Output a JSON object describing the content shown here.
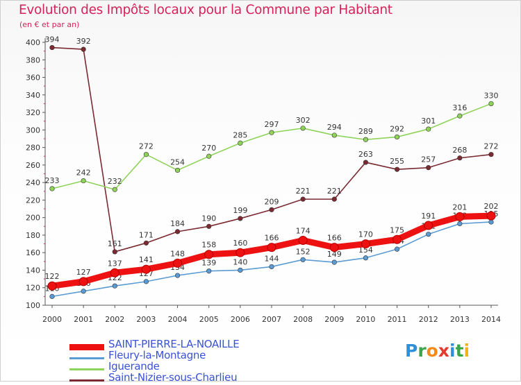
{
  "header": {
    "title": "Evolution des Impôts locaux pour la Commune par Habitant",
    "subtitle": "(en € et par an)"
  },
  "logo": {
    "letters": [
      "P",
      "r",
      "o",
      "x",
      "i",
      "t",
      "i"
    ],
    "colors": [
      "#2f8fd8",
      "#3aa64a",
      "#f28a1c",
      "#e23a2c",
      "#2f8fd8",
      "#3aa64a",
      "#f2b01c"
    ]
  },
  "chart_data": {
    "type": "line",
    "title": "Evolution des Impôts locaux pour la Commune par Habitant",
    "subtitle": "(en € et par an)",
    "x": [
      "2000",
      "2001",
      "2002",
      "2003",
      "2004",
      "2005",
      "2006",
      "2007",
      "2008",
      "2009",
      "2010",
      "2011",
      "2012",
      "2013",
      "2014"
    ],
    "ylim": [
      100,
      400
    ],
    "yticks": [
      100,
      120,
      140,
      160,
      180,
      200,
      220,
      240,
      260,
      280,
      300,
      320,
      340,
      360,
      380,
      400
    ],
    "grid": false,
    "legend": "bottom-left",
    "series": [
      {
        "name": "Saint-Nizier-sous-Charlieu",
        "color": "#7a2a30",
        "values": [
          394,
          392,
          161,
          171,
          184,
          190,
          199,
          209,
          221,
          221,
          263,
          255,
          257,
          268,
          272
        ],
        "labels": [
          "394",
          "392",
          "161",
          "171",
          "184",
          "190",
          "199",
          "209",
          "221",
          "221",
          "263",
          "255",
          "257",
          "268",
          "272"
        ]
      },
      {
        "name": "Iguerande",
        "color": "#8fd35a",
        "values": [
          233,
          242,
          232,
          272,
          254,
          270,
          285,
          297,
          302,
          294,
          289,
          292,
          301,
          316,
          330
        ],
        "labels": [
          "233",
          "242",
          "232",
          "272",
          "254",
          "270",
          "285",
          "297",
          "302",
          "294",
          "289",
          "292",
          "301",
          "316",
          "330"
        ]
      },
      {
        "name": "Fleury-la-Montagne",
        "color": "#5a9bd4",
        "values": [
          110,
          116,
          122,
          127,
          134,
          139,
          140,
          144,
          152,
          149,
          154,
          164,
          181,
          193,
          195
        ],
        "labels": [
          "110",
          "116",
          "122",
          "127",
          "134",
          "139",
          "140",
          "144",
          "152",
          "149",
          "154",
          "164",
          "181",
          "193",
          "195"
        ]
      },
      {
        "name": "SAINT-PIERRE-LA-NOAILLE",
        "color": "#ee1111",
        "values": [
          122,
          127,
          137,
          141,
          148,
          158,
          160,
          166,
          174,
          166,
          170,
          175,
          191,
          201,
          202
        ],
        "labels": [
          "122",
          "127",
          "137",
          "141",
          "148",
          "158",
          "160",
          "166",
          "174",
          "166",
          "170",
          "175",
          "191",
          "201",
          "202"
        ]
      }
    ],
    "legend_order": [
      "SAINT-PIERRE-LA-NOAILLE",
      "Fleury-la-Montagne",
      "Iguerande",
      "Saint-Nizier-sous-Charlieu"
    ]
  }
}
